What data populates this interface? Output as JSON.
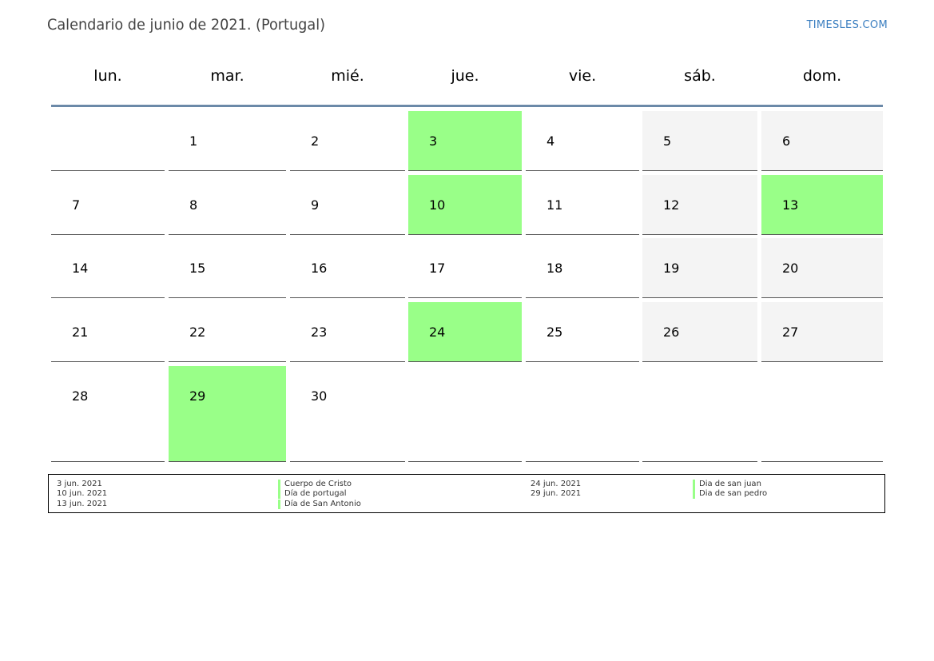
{
  "title": "Calendario de junio de 2021. (Portugal)",
  "brand": "TIMESLES.COM",
  "weekdays": [
    "lun.",
    "mar.",
    "mié.",
    "jue.",
    "vie.",
    "sáb.",
    "dom."
  ],
  "colors": {
    "holiday": "#99ff88",
    "weekend": "#f4f4f4",
    "header_rule": "#6b89a8",
    "brand": "#3a7ec0"
  },
  "weeks": [
    [
      {
        "day": "",
        "type": "normal"
      },
      {
        "day": "1",
        "type": "normal"
      },
      {
        "day": "2",
        "type": "normal"
      },
      {
        "day": "3",
        "type": "holiday"
      },
      {
        "day": "4",
        "type": "normal"
      },
      {
        "day": "5",
        "type": "weekend"
      },
      {
        "day": "6",
        "type": "weekend"
      }
    ],
    [
      {
        "day": "7",
        "type": "normal"
      },
      {
        "day": "8",
        "type": "normal"
      },
      {
        "day": "9",
        "type": "normal"
      },
      {
        "day": "10",
        "type": "holiday"
      },
      {
        "day": "11",
        "type": "normal"
      },
      {
        "day": "12",
        "type": "weekend"
      },
      {
        "day": "13",
        "type": "holiday"
      }
    ],
    [
      {
        "day": "14",
        "type": "normal"
      },
      {
        "day": "15",
        "type": "normal"
      },
      {
        "day": "16",
        "type": "normal"
      },
      {
        "day": "17",
        "type": "normal"
      },
      {
        "day": "18",
        "type": "normal"
      },
      {
        "day": "19",
        "type": "weekend"
      },
      {
        "day": "20",
        "type": "weekend"
      }
    ],
    [
      {
        "day": "21",
        "type": "normal"
      },
      {
        "day": "22",
        "type": "normal"
      },
      {
        "day": "23",
        "type": "normal"
      },
      {
        "day": "24",
        "type": "holiday"
      },
      {
        "day": "25",
        "type": "normal"
      },
      {
        "day": "26",
        "type": "weekend"
      },
      {
        "day": "27",
        "type": "weekend"
      }
    ],
    [
      {
        "day": "28",
        "type": "normal"
      },
      {
        "day": "29",
        "type": "holiday"
      },
      {
        "day": "30",
        "type": "normal"
      },
      {
        "day": "",
        "type": "empty"
      },
      {
        "day": "",
        "type": "empty"
      },
      {
        "day": "",
        "type": "empty"
      },
      {
        "day": "",
        "type": "empty"
      }
    ]
  ],
  "holidays": [
    {
      "date": "3 jun. 2021",
      "name": "Cuerpo de Cristo"
    },
    {
      "date": "10 jun. 2021",
      "name": "Día de portugal"
    },
    {
      "date": "13 jun. 2021",
      "name": "Día de San Antonio"
    },
    {
      "date": "24 jun. 2021",
      "name": "Dia de san juan"
    },
    {
      "date": "29 jun. 2021",
      "name": "Dia de san pedro"
    }
  ]
}
